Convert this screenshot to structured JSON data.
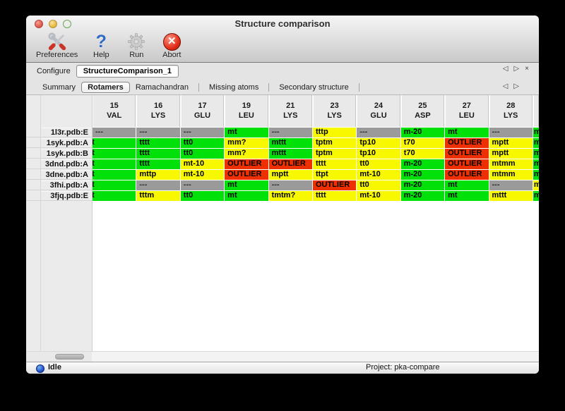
{
  "window": {
    "title": "Structure comparison"
  },
  "toolbar": {
    "items": [
      {
        "label": "Preferences",
        "icon": "tools-icon"
      },
      {
        "label": "Help",
        "icon": "help-icon"
      },
      {
        "label": "Run",
        "icon": "gear-icon"
      },
      {
        "label": "Abort",
        "icon": "abort-icon"
      }
    ]
  },
  "configure": {
    "label": "Configure",
    "value": "StructureComparison_1"
  },
  "nav_arrows": {
    "prev": "◁",
    "next": "▷",
    "close": "×"
  },
  "tabs": {
    "items": [
      "Summary",
      "Rotamers",
      "Ramachandran",
      "Missing atoms",
      "Secondary structure"
    ],
    "active": "Rotamers"
  },
  "colors": {
    "green": "#00e109",
    "yellow": "#f8f800",
    "red": "#ee2f00",
    "gray": "#9a9a9a"
  },
  "table": {
    "columns": [
      {
        "num": "15",
        "res": "VAL"
      },
      {
        "num": "16",
        "res": "LYS"
      },
      {
        "num": "17",
        "res": "GLU"
      },
      {
        "num": "19",
        "res": "LEU"
      },
      {
        "num": "21",
        "res": "LYS"
      },
      {
        "num": "23",
        "res": "LYS"
      },
      {
        "num": "24",
        "res": "GLU"
      },
      {
        "num": "25",
        "res": "ASP"
      },
      {
        "num": "27",
        "res": "LEU"
      },
      {
        "num": "28",
        "res": "LYS"
      }
    ],
    "rows": [
      {
        "label": "1l3r.pdb:E",
        "cells": [
          {
            "t": "---",
            "c": "gray"
          },
          {
            "t": "---",
            "c": "gray"
          },
          {
            "t": "---",
            "c": "gray"
          },
          {
            "t": "mt",
            "c": "green"
          },
          {
            "t": "---",
            "c": "gray"
          },
          {
            "t": "tttp",
            "c": "yellow"
          },
          {
            "t": "---",
            "c": "gray"
          },
          {
            "t": "m-20",
            "c": "green"
          },
          {
            "t": "mt",
            "c": "green"
          },
          {
            "t": "---",
            "c": "gray"
          }
        ],
        "next": {
          "t": "m",
          "c": "green"
        }
      },
      {
        "label": "1syk.pdb:A",
        "cells": [
          {
            "t": "t",
            "c": "green",
            "clip": true
          },
          {
            "t": "tttt",
            "c": "green"
          },
          {
            "t": "tt0",
            "c": "green"
          },
          {
            "t": "mm?",
            "c": "yellow"
          },
          {
            "t": "mttt",
            "c": "green"
          },
          {
            "t": "tptm",
            "c": "yellow"
          },
          {
            "t": "tp10",
            "c": "yellow"
          },
          {
            "t": "t70",
            "c": "yellow"
          },
          {
            "t": "OUTLIER",
            "c": "red"
          },
          {
            "t": "mptt",
            "c": "yellow"
          }
        ],
        "next": {
          "t": "m",
          "c": "green"
        }
      },
      {
        "label": "1syk.pdb:B",
        "cells": [
          {
            "t": "t",
            "c": "green",
            "clip": true
          },
          {
            "t": "tttt",
            "c": "green"
          },
          {
            "t": "tt0",
            "c": "green"
          },
          {
            "t": "mm?",
            "c": "yellow"
          },
          {
            "t": "mttt",
            "c": "green"
          },
          {
            "t": "tptm",
            "c": "yellow"
          },
          {
            "t": "tp10",
            "c": "yellow"
          },
          {
            "t": "t70",
            "c": "yellow"
          },
          {
            "t": "OUTLIER",
            "c": "red"
          },
          {
            "t": "mptt",
            "c": "yellow"
          }
        ],
        "next": {
          "t": "m",
          "c": "green"
        }
      },
      {
        "label": "3dnd.pdb:A",
        "cells": [
          {
            "t": "t",
            "c": "green",
            "clip": true
          },
          {
            "t": "tttt",
            "c": "green"
          },
          {
            "t": "mt-10",
            "c": "yellow"
          },
          {
            "t": "OUTLIER",
            "c": "red"
          },
          {
            "t": "OUTLIER",
            "c": "red"
          },
          {
            "t": "tttt",
            "c": "yellow"
          },
          {
            "t": "tt0",
            "c": "yellow"
          },
          {
            "t": "m-20",
            "c": "green"
          },
          {
            "t": "OUTLIER",
            "c": "red"
          },
          {
            "t": "mtmm",
            "c": "yellow"
          }
        ],
        "next": {
          "t": "m",
          "c": "green"
        }
      },
      {
        "label": "3dne.pdb:A",
        "cells": [
          {
            "t": "t",
            "c": "green",
            "clip": true
          },
          {
            "t": "mttp",
            "c": "yellow"
          },
          {
            "t": "mt-10",
            "c": "yellow"
          },
          {
            "t": "OUTLIER",
            "c": "red"
          },
          {
            "t": "mptt",
            "c": "yellow"
          },
          {
            "t": "ttpt",
            "c": "yellow"
          },
          {
            "t": "mt-10",
            "c": "yellow"
          },
          {
            "t": "m-20",
            "c": "green"
          },
          {
            "t": "OUTLIER",
            "c": "red"
          },
          {
            "t": "mtmm",
            "c": "yellow"
          }
        ],
        "next": {
          "t": "m",
          "c": "green"
        }
      },
      {
        "label": "3fhi.pdb:A",
        "cells": [
          {
            "t": "t",
            "c": "green",
            "clip": true
          },
          {
            "t": "---",
            "c": "gray"
          },
          {
            "t": "---",
            "c": "gray"
          },
          {
            "t": "mt",
            "c": "green"
          },
          {
            "t": "---",
            "c": "gray"
          },
          {
            "t": "OUTLIER",
            "c": "red"
          },
          {
            "t": "tt0",
            "c": "yellow"
          },
          {
            "t": "m-20",
            "c": "green"
          },
          {
            "t": "mt",
            "c": "green"
          },
          {
            "t": "---",
            "c": "gray"
          }
        ],
        "next": {
          "t": "m",
          "c": "yellow"
        }
      },
      {
        "label": "3fjq.pdb:E",
        "cells": [
          {
            "t": "t",
            "c": "green",
            "clip": true
          },
          {
            "t": "tttm",
            "c": "yellow"
          },
          {
            "t": "tt0",
            "c": "green"
          },
          {
            "t": "mt",
            "c": "green"
          },
          {
            "t": "tmtm?",
            "c": "yellow"
          },
          {
            "t": "tttt",
            "c": "yellow"
          },
          {
            "t": "mt-10",
            "c": "yellow"
          },
          {
            "t": "m-20",
            "c": "green"
          },
          {
            "t": "mt",
            "c": "green"
          },
          {
            "t": "mttt",
            "c": "yellow"
          }
        ],
        "next": {
          "t": "m",
          "c": "green"
        }
      }
    ]
  },
  "statusbar": {
    "state": "Idle",
    "project": "Project: pka-compare"
  }
}
